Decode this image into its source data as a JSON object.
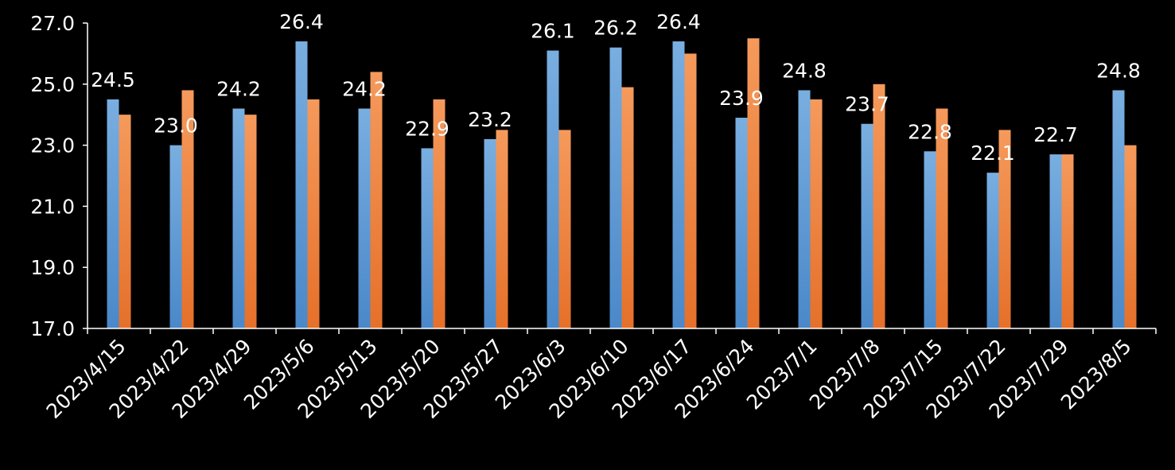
{
  "chart_data": {
    "type": "bar",
    "title": "",
    "xlabel": "",
    "ylabel": "",
    "ylim": [
      17.0,
      27.0
    ],
    "yticks": [
      "17.0",
      "19.0",
      "21.0",
      "23.0",
      "25.0",
      "27.0"
    ],
    "grid": false,
    "legend": "none",
    "categories": [
      "2023/4/15",
      "2023/4/22",
      "2023/4/29",
      "2023/5/6",
      "2023/5/13",
      "2023/5/20",
      "2023/5/27",
      "2023/6/3",
      "2023/6/10",
      "2023/6/17",
      "2023/6/24",
      "2023/7/1",
      "2023/7/8",
      "2023/7/15",
      "2023/7/22",
      "2023/7/29",
      "2023/8/5"
    ],
    "series": [
      {
        "color": "#5b9bd5",
        "values": [
          24.5,
          23.0,
          24.2,
          26.4,
          24.2,
          22.9,
          23.2,
          26.1,
          26.2,
          26.4,
          23.9,
          24.8,
          23.7,
          22.8,
          22.1,
          22.7,
          24.8
        ],
        "data_labels": [
          "24.5",
          "23.0",
          "24.2",
          "26.4",
          "24.2",
          "22.9",
          "23.2",
          "26.1",
          "26.2",
          "26.4",
          "23.9",
          "24.8",
          "23.7",
          "22.8",
          "22.1",
          "22.7",
          "24.8"
        ]
      },
      {
        "color": "#ed7d31",
        "values": [
          24.0,
          24.8,
          24.0,
          24.5,
          25.4,
          24.5,
          23.5,
          23.5,
          24.9,
          26.0,
          26.5,
          24.5,
          25.0,
          24.2,
          23.5,
          22.7,
          23.0
        ]
      }
    ],
    "axis_color": "#ffffff",
    "text_color": "#ffffff",
    "background": "#000000"
  }
}
